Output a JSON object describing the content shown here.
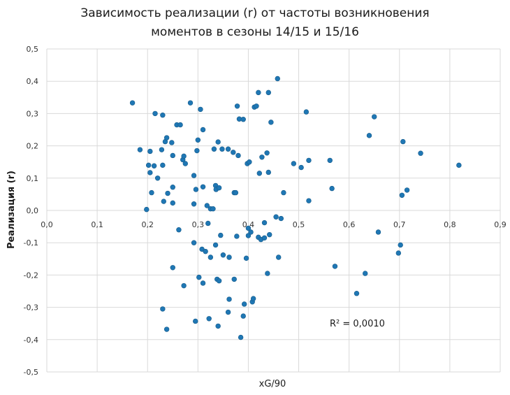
{
  "chart_data": {
    "type": "scatter",
    "title_lines": [
      "Зависимость реализации (r) от частоты возникновения",
      "моментов в сезоны 14/15 и 15/16"
    ],
    "xlabel": "xG/90",
    "ylabel": "Реализация (r)",
    "xlim": [
      0,
      0.9
    ],
    "ylim": [
      -0.5,
      0.5
    ],
    "x_ticks": [
      "0,0",
      "0,1",
      "0,2",
      "0,3",
      "0,4",
      "0,5",
      "0,6",
      "0,7",
      "0,8",
      "0,9"
    ],
    "y_ticks": [
      "-0,5",
      "-0,4",
      "-0,3",
      "-0,2",
      "-0,1",
      "0,0",
      "0,1",
      "0,2",
      "0,3",
      "0,4",
      "0,5"
    ],
    "grid": true,
    "point_color": "#1f77b4",
    "annotation": "R² = 0,0010",
    "points": [
      [
        0.17,
        0.333
      ],
      [
        0.185,
        0.188
      ],
      [
        0.198,
        0.003
      ],
      [
        0.202,
        0.14
      ],
      [
        0.205,
        0.117
      ],
      [
        0.205,
        0.183
      ],
      [
        0.208,
        0.055
      ],
      [
        0.215,
        0.3
      ],
      [
        0.213,
        0.138
      ],
      [
        0.22,
        0.1
      ],
      [
        0.228,
        0.188
      ],
      [
        0.23,
        0.295
      ],
      [
        0.23,
        0.14
      ],
      [
        0.232,
        0.028
      ],
      [
        0.235,
        0.213
      ],
      [
        0.238,
        0.225
      ],
      [
        0.24,
        0.053
      ],
      [
        0.248,
        0.21
      ],
      [
        0.25,
        0.17
      ],
      [
        0.25,
        0.072
      ],
      [
        0.25,
        0.023
      ],
      [
        0.258,
        0.265
      ],
      [
        0.265,
        0.265
      ],
      [
        0.27,
        0.157
      ],
      [
        0.272,
        0.168
      ],
      [
        0.275,
        0.145
      ],
      [
        0.285,
        0.333
      ],
      [
        0.292,
        0.108
      ],
      [
        0.292,
        0.02
      ],
      [
        0.296,
        0.065
      ],
      [
        0.298,
        0.185
      ],
      [
        0.3,
        0.218
      ],
      [
        0.305,
        0.313
      ],
      [
        0.31,
        0.073
      ],
      [
        0.31,
        0.25
      ],
      [
        0.318,
        0.015
      ],
      [
        0.32,
        -0.04
      ],
      [
        0.325,
        0.005
      ],
      [
        0.33,
        0.005
      ],
      [
        0.332,
        0.19
      ],
      [
        0.335,
        0.077
      ],
      [
        0.336,
        0.065
      ],
      [
        0.34,
        0.212
      ],
      [
        0.342,
        0.07
      ],
      [
        0.348,
        0.19
      ],
      [
        0.36,
        0.19
      ],
      [
        0.37,
        0.18
      ],
      [
        0.372,
        0.055
      ],
      [
        0.375,
        0.055
      ],
      [
        0.378,
        0.323
      ],
      [
        0.38,
        0.17
      ],
      [
        0.382,
        0.283
      ],
      [
        0.39,
        0.282
      ],
      [
        0.398,
        0.145
      ],
      [
        0.402,
        0.15
      ],
      [
        0.412,
        0.32
      ],
      [
        0.416,
        0.323
      ],
      [
        0.42,
        0.365
      ],
      [
        0.422,
        0.115
      ],
      [
        0.427,
        0.165
      ],
      [
        0.437,
        0.178
      ],
      [
        0.44,
        0.365
      ],
      [
        0.44,
        0.118
      ],
      [
        0.445,
        0.273
      ],
      [
        0.458,
        0.408
      ],
      [
        0.47,
        0.055
      ],
      [
        0.49,
        0.145
      ],
      [
        0.505,
        0.133
      ],
      [
        0.515,
        0.305
      ],
      [
        0.52,
        0.03
      ],
      [
        0.52,
        0.155
      ],
      [
        0.562,
        0.155
      ],
      [
        0.566,
        0.068
      ],
      [
        0.64,
        0.232
      ],
      [
        0.65,
        0.29
      ],
      [
        0.705,
        0.047
      ],
      [
        0.707,
        0.213
      ],
      [
        0.715,
        0.063
      ],
      [
        0.742,
        0.177
      ],
      [
        0.818,
        0.14
      ],
      [
        0.23,
        -0.305
      ],
      [
        0.238,
        -0.368
      ],
      [
        0.25,
        -0.177
      ],
      [
        0.262,
        -0.06
      ],
      [
        0.272,
        -0.233
      ],
      [
        0.292,
        -0.1
      ],
      [
        0.295,
        -0.343
      ],
      [
        0.302,
        -0.207
      ],
      [
        0.308,
        -0.12
      ],
      [
        0.31,
        -0.225
      ],
      [
        0.315,
        -0.127
      ],
      [
        0.322,
        -0.335
      ],
      [
        0.325,
        -0.145
      ],
      [
        0.335,
        -0.107
      ],
      [
        0.338,
        -0.213
      ],
      [
        0.34,
        -0.358
      ],
      [
        0.342,
        -0.218
      ],
      [
        0.345,
        -0.077
      ],
      [
        0.35,
        -0.138
      ],
      [
        0.36,
        -0.315
      ],
      [
        0.362,
        -0.275
      ],
      [
        0.362,
        -0.145
      ],
      [
        0.372,
        -0.213
      ],
      [
        0.377,
        -0.08
      ],
      [
        0.385,
        -0.393
      ],
      [
        0.39,
        -0.327
      ],
      [
        0.392,
        -0.29
      ],
      [
        0.396,
        -0.148
      ],
      [
        0.4,
        -0.055
      ],
      [
        0.4,
        -0.078
      ],
      [
        0.405,
        -0.067
      ],
      [
        0.408,
        -0.283
      ],
      [
        0.41,
        -0.273
      ],
      [
        0.42,
        -0.083
      ],
      [
        0.425,
        -0.09
      ],
      [
        0.432,
        -0.085
      ],
      [
        0.432,
        -0.038
      ],
      [
        0.438,
        -0.195
      ],
      [
        0.442,
        -0.075
      ],
      [
        0.455,
        -0.02
      ],
      [
        0.46,
        -0.145
      ],
      [
        0.465,
        -0.025
      ],
      [
        0.572,
        -0.173
      ],
      [
        0.632,
        -0.195
      ],
      [
        0.615,
        -0.257
      ],
      [
        0.658,
        -0.067
      ],
      [
        0.698,
        -0.132
      ],
      [
        0.702,
        -0.107
      ]
    ]
  }
}
